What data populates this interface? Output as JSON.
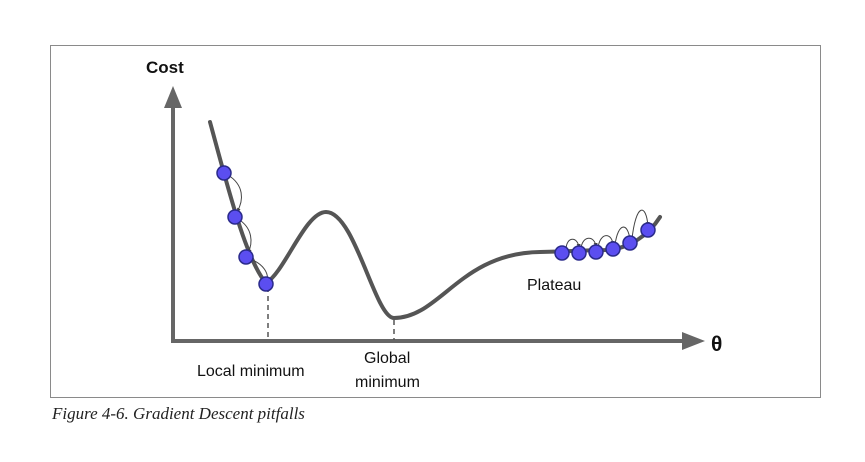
{
  "diagram": {
    "y_axis_label": "Cost",
    "x_axis_label": "θ",
    "labels": {
      "local_minimum": "Local minimum",
      "global_minimum_line1": "Global",
      "global_minimum_line2": "minimum",
      "plateau": "Plateau"
    },
    "colors": {
      "curve": "#555555",
      "axis": "#666666",
      "ball_fill": "#5b4ef0",
      "ball_stroke": "#2a2a8a",
      "step_arrow": "#444444"
    }
  },
  "caption": "Figure 4-6. Gradient Descent pitfalls"
}
